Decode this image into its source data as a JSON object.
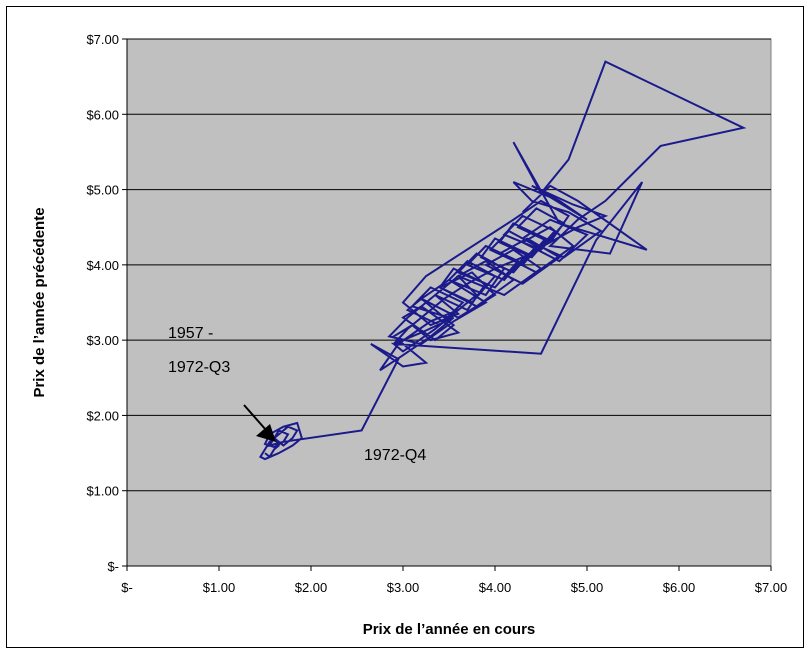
{
  "chart_data": {
    "type": "line",
    "xlabel": "Prix de l’année en cours",
    "ylabel": "Prix de l’année précédente",
    "xlim": [
      0,
      7
    ],
    "ylim": [
      0,
      7
    ],
    "grid": "horizontal",
    "plot_background": "#c0c0c0",
    "series_color": "#1a1a8c",
    "x_ticks": [
      {
        "value": 0,
        "label": "$-"
      },
      {
        "value": 1,
        "label": "$1.00"
      },
      {
        "value": 2,
        "label": "$2.00"
      },
      {
        "value": 3,
        "label": "$3.00"
      },
      {
        "value": 4,
        "label": "$4.00"
      },
      {
        "value": 5,
        "label": "$5.00"
      },
      {
        "value": 6,
        "label": "$6.00"
      },
      {
        "value": 7,
        "label": "$7.00"
      }
    ],
    "y_ticks": [
      {
        "value": 0,
        "label": "$-"
      },
      {
        "value": 1,
        "label": "$1.00"
      },
      {
        "value": 2,
        "label": "$2.00"
      },
      {
        "value": 3,
        "label": "$3.00"
      },
      {
        "value": 4,
        "label": "$4.00"
      },
      {
        "value": 5,
        "label": "$5.00"
      },
      {
        "value": 6,
        "label": "$6.00"
      },
      {
        "value": 7,
        "label": "$7.00"
      }
    ],
    "annotations": {
      "early_line1": "1957 -",
      "early_line2": "1972-Q3",
      "break_label": "1972-Q4"
    },
    "series": [
      {
        "x": [
          1.5,
          1.55,
          1.6,
          1.65,
          1.6,
          1.55,
          1.7,
          1.75,
          1.65,
          1.6,
          1.7,
          1.8,
          1.85,
          1.75,
          1.65,
          1.55,
          1.45,
          1.5,
          1.65,
          1.8,
          1.9,
          1.85,
          1.7,
          1.55,
          1.5,
          1.6,
          1.7,
          2.55,
          2.95,
          2.65,
          3.0,
          3.25,
          2.9,
          3.1,
          3.3,
          3.6,
          3.2,
          3.0,
          3.35,
          3.55,
          3.2,
          3.05,
          3.4,
          3.65,
          3.3,
          3.1,
          3.5,
          3.8,
          3.6,
          3.35,
          3.7,
          3.9,
          3.55,
          3.4,
          3.75,
          4.0,
          3.7,
          3.5,
          3.9,
          4.1,
          3.8,
          3.6,
          4.0,
          4.25,
          3.9,
          3.7,
          4.1,
          4.35,
          4.0,
          3.85,
          4.2,
          4.45,
          4.15,
          3.95,
          4.3,
          4.55,
          4.2,
          4.05,
          4.4,
          4.65,
          4.3,
          4.1,
          4.5,
          4.75,
          4.45,
          4.25,
          4.6,
          4.8,
          4.5,
          4.2,
          3.25,
          3.0,
          3.3,
          3.6,
          3.35,
          3.05,
          2.85,
          3.2,
          3.55,
          3.9,
          3.5,
          3.2,
          3.6,
          4.0,
          3.75,
          3.4,
          3.8,
          4.2,
          3.9,
          3.6,
          4.1,
          4.5,
          4.2,
          3.9,
          4.3,
          4.7,
          4.35,
          4.05,
          4.45,
          4.85,
          4.6,
          4.3,
          4.7,
          5.0,
          4.6,
          4.3,
          4.75,
          5.15,
          4.8,
          4.4,
          4.2,
          4.6,
          5.0,
          4.7,
          4.4,
          4.85,
          5.2,
          4.9,
          4.6,
          4.3,
          4.0,
          3.7,
          3.45,
          3.25,
          3.05,
          2.9,
          3.2,
          3.55,
          3.3,
          3.0,
          2.75,
          2.95,
          3.3,
          3.6,
          3.35,
          3.0,
          2.9,
          4.5,
          5.1,
          5.6,
          5.25,
          4.6,
          4.9,
          5.2,
          5.8,
          6.7,
          5.2,
          4.8,
          4.5,
          4.2,
          4.7,
          5.65,
          4.9,
          4.6,
          4.3
        ],
        "y": [
          1.5,
          1.45,
          1.55,
          1.6,
          1.7,
          1.6,
          1.65,
          1.75,
          1.8,
          1.7,
          1.6,
          1.7,
          1.8,
          1.85,
          1.75,
          1.65,
          1.45,
          1.42,
          1.5,
          1.6,
          1.7,
          1.9,
          1.85,
          1.75,
          1.62,
          1.58,
          1.65,
          1.8,
          2.75,
          2.95,
          2.65,
          2.7,
          3.05,
          3.2,
          3.0,
          3.1,
          3.45,
          3.3,
          3.0,
          3.2,
          3.55,
          3.4,
          3.2,
          3.5,
          3.7,
          3.45,
          3.3,
          3.6,
          3.85,
          3.6,
          3.4,
          3.75,
          3.95,
          3.7,
          3.5,
          3.85,
          4.05,
          3.8,
          3.6,
          3.95,
          4.15,
          3.9,
          3.7,
          4.05,
          4.25,
          4.0,
          3.8,
          4.15,
          4.35,
          4.1,
          3.9,
          4.25,
          4.45,
          4.2,
          4.0,
          4.35,
          4.55,
          4.3,
          4.1,
          4.45,
          4.65,
          4.4,
          4.2,
          4.55,
          4.75,
          4.5,
          4.3,
          4.65,
          4.85,
          4.6,
          3.85,
          3.5,
          3.2,
          3.35,
          3.6,
          3.3,
          3.05,
          2.95,
          3.25,
          3.5,
          3.8,
          3.55,
          3.3,
          3.6,
          3.9,
          3.7,
          3.45,
          3.8,
          4.05,
          3.85,
          3.6,
          3.95,
          4.2,
          4.0,
          3.75,
          4.1,
          4.35,
          4.15,
          3.9,
          4.25,
          4.5,
          4.3,
          4.05,
          4.4,
          4.6,
          4.35,
          4.1,
          4.45,
          4.7,
          4.85,
          5.1,
          4.9,
          4.6,
          4.85,
          5.05,
          4.8,
          4.65,
          4.5,
          4.3,
          4.1,
          3.95,
          3.75,
          3.55,
          3.35,
          3.15,
          2.95,
          3.1,
          3.3,
          3.05,
          2.8,
          2.6,
          2.95,
          3.25,
          3.4,
          3.15,
          2.85,
          2.95,
          2.82,
          4.33,
          5.1,
          4.15,
          4.25,
          4.6,
          4.85,
          5.58,
          5.82,
          6.7,
          5.4,
          4.95,
          5.63,
          4.55,
          4.2,
          4.85,
          5.05,
          4.7
        ],
        "name": ""
      }
    ]
  },
  "annotation_color": "#000000"
}
